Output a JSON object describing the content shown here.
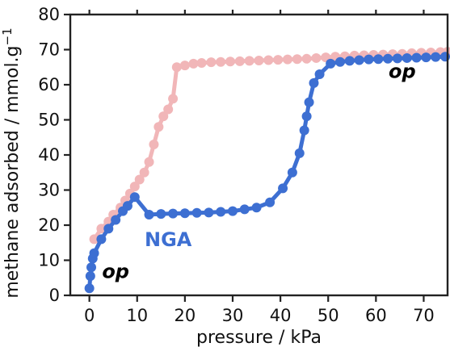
{
  "chart_data": {
    "type": "line",
    "xlabel": "pressure / kPa",
    "ylabel": "methane adsorbed / mmol.g",
    "ylabel_superscript": "−1",
    "xlim": [
      -4,
      75
    ],
    "ylim": [
      0,
      80
    ],
    "xticks": [
      0,
      10,
      20,
      30,
      40,
      50,
      60,
      70
    ],
    "yticks": [
      0,
      10,
      20,
      30,
      40,
      50,
      60,
      70,
      80
    ],
    "grid": false,
    "annotations": [
      {
        "text": "op",
        "x": 5.5,
        "y": 5
      },
      {
        "text": "op",
        "x": 65.5,
        "y": 62
      },
      {
        "text": "NGA",
        "x": 16.5,
        "y": 14
      }
    ],
    "series": [
      {
        "color": "#e8878a",
        "opacity": 0.6,
        "x": [
          1,
          2.5,
          4,
          5,
          6.5,
          7.5,
          8.5,
          9.5,
          10.5,
          11.5,
          12.5,
          13.5,
          14.5,
          15.5,
          16.5,
          17.5,
          18.3,
          20,
          21.8,
          23.5,
          25.5,
          27.5,
          29.5,
          31.5,
          33.5,
          35.5,
          37.5,
          39.5,
          41.5,
          43.5,
          45.5,
          47.5,
          49.5,
          51.5,
          53.5,
          55.5,
          57.5,
          59.5,
          61.5,
          63.5,
          65.5,
          67.5,
          69.5,
          71.5,
          73.5,
          75
        ],
        "values": [
          16,
          19,
          21,
          23,
          25,
          27,
          29,
          31,
          33,
          35,
          38,
          43,
          48,
          51,
          53,
          56,
          65,
          65.5,
          66,
          66.2,
          66.4,
          66.5,
          66.6,
          66.7,
          66.8,
          66.9,
          67,
          67.1,
          67.2,
          67.3,
          67.4,
          67.6,
          67.8,
          68,
          68.1,
          68.3,
          68.4,
          68.5,
          68.6,
          68.7,
          68.8,
          69,
          69.1,
          69.2,
          69.3,
          69.4
        ]
      },
      {
        "color": "#3d6fd2",
        "opacity": 1,
        "x": [
          0,
          0.2,
          0.4,
          0.7,
          1,
          2.5,
          4,
          5.5,
          7,
          8,
          9.5,
          12.5,
          15,
          17.5,
          20,
          22.5,
          25,
          27.5,
          30,
          32.5,
          35,
          37.8,
          40.5,
          42.5,
          44,
          45,
          45.5,
          46,
          47,
          48.2,
          50.5,
          52.5,
          54.5,
          56.5,
          58.5,
          60.5,
          62.5,
          64.5,
          66.5,
          68.5,
          70.5,
          72.5,
          74.5
        ],
        "values": [
          2,
          5.5,
          8,
          10.5,
          12,
          16,
          19,
          21.5,
          24,
          25.5,
          28,
          23,
          23.2,
          23.3,
          23.4,
          23.5,
          23.6,
          23.8,
          24,
          24.5,
          25,
          26.5,
          30.5,
          35,
          40.5,
          47,
          51,
          55,
          60.5,
          63,
          66,
          66.5,
          66.8,
          67,
          67.2,
          67.3,
          67.4,
          67.5,
          67.6,
          67.7,
          67.8,
          67.9,
          68
        ]
      }
    ]
  }
}
